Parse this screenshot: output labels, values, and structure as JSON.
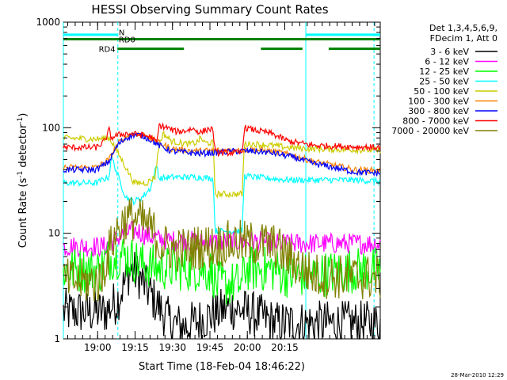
{
  "chart_data": {
    "type": "line",
    "title": "HESSI Observing Summary Count Rates",
    "xlabel": "Start Time (18-Feb-04 18:46:22)",
    "ylabel_main": "Count Rate (s",
    "ylabel_sup1": "-1",
    "ylabel_mid": " detector",
    "ylabel_sup2": "-1",
    "ylabel_end": ")",
    "y_scale": "log",
    "ylim": [
      1,
      1000
    ],
    "xlim": [
      0,
      7620
    ],
    "x_unit": "seconds since 18:46:22",
    "x_ticks": [
      {
        "t": 824,
        "label": "19:00"
      },
      {
        "t": 1724,
        "label": "19:15"
      },
      {
        "t": 2624,
        "label": "19:30"
      },
      {
        "t": 3524,
        "label": "19:45"
      },
      {
        "t": 4424,
        "label": "20:00"
      },
      {
        "t": 5324,
        "label": "20:15"
      }
    ],
    "x_minor_step": 180,
    "y_ticks": [
      {
        "v": 1,
        "label": "1"
      },
      {
        "v": 10,
        "label": "10"
      },
      {
        "v": 100,
        "label": "100"
      },
      {
        "v": 1000,
        "label": "1000"
      }
    ],
    "legend": {
      "placement": "right",
      "header": [
        "Det 1,3,4,5,6,9,",
        "FDecim 1, Att 0"
      ]
    },
    "series": [
      {
        "name": "3 - 6 keV",
        "color": "#000000",
        "points": [
          [
            1000,
            1.8
          ],
          [
            1300,
            2.3
          ],
          [
            1600,
            4.5
          ],
          [
            1800,
            4
          ],
          [
            2000,
            3
          ],
          [
            2300,
            2
          ],
          [
            2600,
            1.4
          ],
          [
            2900,
            1.3
          ],
          [
            3300,
            1.5
          ],
          [
            3600,
            1.7
          ],
          [
            4000,
            2
          ],
          [
            4400,
            1.8
          ],
          [
            4800,
            1.6
          ],
          [
            5100,
            1.4
          ]
        ]
      },
      {
        "name": "6 - 12 keV",
        "color": "#ff00ff",
        "points": [
          [
            1000,
            7.5
          ],
          [
            1200,
            8.5
          ],
          [
            1400,
            9.5
          ],
          [
            1600,
            10.5
          ],
          [
            1800,
            10.5
          ],
          [
            2000,
            9.5
          ],
          [
            2300,
            8.8
          ],
          [
            2600,
            8.5
          ],
          [
            3000,
            8.5
          ],
          [
            3300,
            8.3
          ],
          [
            3600,
            8.2
          ],
          [
            3900,
            8.3
          ],
          [
            4200,
            8.3
          ],
          [
            4500,
            8.4
          ],
          [
            4800,
            8.3
          ],
          [
            5100,
            8
          ]
        ]
      },
      {
        "name": "12 - 25 keV",
        "color": "#00ff00",
        "points": [
          [
            0,
            4.5
          ],
          [
            900,
            4.5
          ],
          [
            1000,
            5.5
          ],
          [
            1200,
            6
          ],
          [
            1400,
            6.3
          ],
          [
            1600,
            5.8
          ],
          [
            1800,
            5.3
          ],
          [
            2000,
            5
          ],
          [
            2300,
            4.7
          ],
          [
            2600,
            4.7
          ],
          [
            3000,
            4.6
          ],
          [
            3300,
            4.6
          ],
          [
            3600,
            4.3
          ],
          [
            3650,
            3.3
          ],
          [
            4300,
            3.3
          ],
          [
            4350,
            4.6
          ],
          [
            4600,
            4.6
          ],
          [
            5000,
            4.6
          ],
          [
            5400,
            4
          ],
          [
            6000,
            4
          ],
          [
            7000,
            4.5
          ],
          [
            7620,
            4.5
          ]
        ]
      },
      {
        "name": "25 - 50 keV",
        "color": "#00ffff",
        "points": [
          [
            0,
            30
          ],
          [
            800,
            30
          ],
          [
            1000,
            33
          ],
          [
            1100,
            34
          ],
          [
            1150,
            55
          ],
          [
            1300,
            36
          ],
          [
            1500,
            22
          ],
          [
            1700,
            20
          ],
          [
            1900,
            22
          ],
          [
            2100,
            27
          ],
          [
            2250,
            45
          ],
          [
            2300,
            33
          ],
          [
            2600,
            34
          ],
          [
            3000,
            34
          ],
          [
            3300,
            34
          ],
          [
            3600,
            33
          ],
          [
            3650,
            10.5
          ],
          [
            4300,
            10.5
          ],
          [
            4350,
            35
          ],
          [
            4600,
            34
          ],
          [
            5000,
            33
          ],
          [
            5400,
            32
          ],
          [
            6000,
            32
          ],
          [
            7000,
            32
          ],
          [
            7620,
            31
          ]
        ]
      },
      {
        "name": "50 - 100 keV",
        "color": "#cccc00",
        "points": [
          [
            0,
            80
          ],
          [
            800,
            78
          ],
          [
            1100,
            80
          ],
          [
            1200,
            70
          ],
          [
            1400,
            50
          ],
          [
            1700,
            30
          ],
          [
            2000,
            30
          ],
          [
            2200,
            34
          ],
          [
            2300,
            68
          ],
          [
            2400,
            88
          ],
          [
            2600,
            75
          ],
          [
            2800,
            72
          ],
          [
            3000,
            70
          ],
          [
            3200,
            72
          ],
          [
            3300,
            80
          ],
          [
            3400,
            72
          ],
          [
            3600,
            72
          ],
          [
            3650,
            23.5
          ],
          [
            4300,
            23.5
          ],
          [
            4350,
            70
          ],
          [
            4600,
            70
          ],
          [
            5000,
            68
          ],
          [
            5400,
            65
          ],
          [
            6000,
            63
          ],
          [
            7000,
            62
          ],
          [
            7620,
            61
          ]
        ]
      },
      {
        "name": "100 - 300 keV",
        "color": "#ff8000",
        "points": [
          [
            0,
            42
          ],
          [
            800,
            42
          ],
          [
            1100,
            50
          ],
          [
            1300,
            70
          ],
          [
            1500,
            82
          ],
          [
            1700,
            88
          ],
          [
            1900,
            86
          ],
          [
            2100,
            80
          ],
          [
            2300,
            72
          ],
          [
            2600,
            63
          ],
          [
            3000,
            61
          ],
          [
            3300,
            60
          ],
          [
            3600,
            61
          ],
          [
            3900,
            61
          ],
          [
            4200,
            61
          ],
          [
            4500,
            62
          ],
          [
            4800,
            61
          ],
          [
            5100,
            59
          ],
          [
            5500,
            55
          ],
          [
            6000,
            48
          ],
          [
            6500,
            44
          ],
          [
            7000,
            40
          ],
          [
            7620,
            39
          ]
        ]
      },
      {
        "name": "300 - 800 keV",
        "color": "#0000ff",
        "points": [
          [
            0,
            40
          ],
          [
            800,
            40
          ],
          [
            1100,
            48
          ],
          [
            1300,
            68
          ],
          [
            1500,
            80
          ],
          [
            1700,
            86
          ],
          [
            1900,
            84
          ],
          [
            2100,
            77
          ],
          [
            2300,
            68
          ],
          [
            2600,
            60
          ],
          [
            3000,
            58
          ],
          [
            3300,
            57
          ],
          [
            3600,
            58
          ],
          [
            3900,
            59
          ],
          [
            4200,
            60
          ],
          [
            4500,
            60
          ],
          [
            4800,
            59
          ],
          [
            5100,
            57
          ],
          [
            5500,
            53
          ],
          [
            6000,
            46
          ],
          [
            6500,
            42
          ],
          [
            7000,
            38
          ],
          [
            7620,
            37
          ]
        ]
      },
      {
        "name": "800 - 7000 keV",
        "color": "#ff0000",
        "points": [
          [
            0,
            65
          ],
          [
            800,
            65
          ],
          [
            1000,
            75
          ],
          [
            1100,
            95
          ],
          [
            1150,
            80
          ],
          [
            1300,
            85
          ],
          [
            1500,
            88
          ],
          [
            1700,
            87
          ],
          [
            1900,
            85
          ],
          [
            2100,
            82
          ],
          [
            2250,
            72
          ],
          [
            2300,
            105
          ],
          [
            2500,
            100
          ],
          [
            2700,
            92
          ],
          [
            2900,
            93
          ],
          [
            3100,
            98
          ],
          [
            3300,
            90
          ],
          [
            3500,
            98
          ],
          [
            3600,
            95
          ],
          [
            3650,
            58
          ],
          [
            4300,
            58
          ],
          [
            4350,
            100
          ],
          [
            4600,
            95
          ],
          [
            5000,
            88
          ],
          [
            5400,
            75
          ],
          [
            6000,
            68
          ],
          [
            7000,
            66
          ],
          [
            7620,
            65
          ]
        ]
      },
      {
        "name": "7000 - 20000 keV",
        "color": "#808000",
        "points": [
          [
            0,
            3.5
          ],
          [
            900,
            3.5
          ],
          [
            1000,
            5
          ],
          [
            1200,
            9
          ],
          [
            1400,
            12.5
          ],
          [
            1600,
            14
          ],
          [
            1800,
            13.5
          ],
          [
            2000,
            12
          ],
          [
            2200,
            10
          ],
          [
            2300,
            8
          ],
          [
            2600,
            7
          ],
          [
            3000,
            7
          ],
          [
            3300,
            7.5
          ],
          [
            3600,
            7.5
          ],
          [
            3900,
            8
          ],
          [
            4200,
            8.2
          ],
          [
            4500,
            8
          ],
          [
            4800,
            8
          ],
          [
            5100,
            7.5
          ],
          [
            5500,
            5.5
          ],
          [
            6000,
            4
          ],
          [
            7000,
            3.8
          ],
          [
            7620,
            3.8
          ]
        ]
      }
    ],
    "day_night": [
      {
        "label": "N",
        "color": "#00ffff",
        "level": 760,
        "segments": [
          [
            0,
            1300
          ],
          [
            5820,
            7620
          ]
        ]
      }
    ],
    "flags": [
      {
        "label": "RD0",
        "color": "#008000",
        "level": 690,
        "segments": [
          [
            0,
            7620
          ]
        ]
      },
      {
        "label": "RD4",
        "color": "#008000",
        "level": 560,
        "segments": [
          [
            1300,
            2900
          ],
          [
            4750,
            5750
          ],
          [
            6380,
            7620
          ]
        ]
      }
    ],
    "saa_lines": [
      1310,
      7470
    ],
    "night_lines": [
      0,
      5830
    ],
    "timestamp": "28-Mar-2010 12:29"
  }
}
